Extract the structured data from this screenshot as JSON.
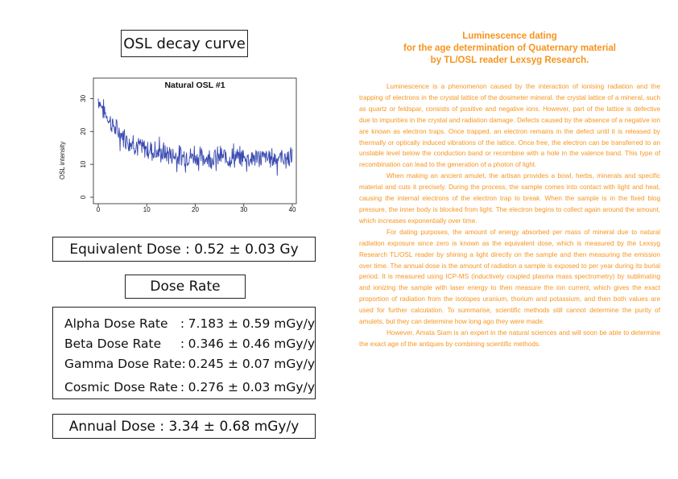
{
  "left": {
    "title": "OSL decay curve",
    "equivalent_dose": "Equivalent Dose : 0.52 ± 0.03 Gy",
    "dose_rate_heading": "Dose Rate",
    "dose_rates": [
      {
        "name": "Alpha Dose Rate",
        "sep": ":",
        "value": "7.183 ± 0.59 mGy/y"
      },
      {
        "name": "Beta Dose Rate",
        "sep": ":",
        "value": "0.346 ± 0.46 mGy/y"
      },
      {
        "name": "Gamma Dose Rate",
        "sep": ":",
        "value": "0.245 ± 0.07 mGy/y"
      },
      {
        "name": "Cosmic Dose Rate",
        "sep": ":",
        "value": "0.276 ± 0.03 mGy/y"
      }
    ],
    "annual_dose": "Annual Dose : 3.34 ± 0.68 mGy/y"
  },
  "chart_data": {
    "type": "line",
    "title": "Natural OSL #1",
    "xlabel": "",
    "ylabel": "OSL intensity",
    "xlim": [
      0,
      40
    ],
    "ylim": [
      0,
      35
    ],
    "x_ticks": [
      "0",
      "10",
      "20",
      "30",
      "40"
    ],
    "y_ticks": [
      "0",
      "10",
      "20",
      "30"
    ],
    "series_color": "#3a4bb0",
    "grid": false,
    "decay": {
      "x_start": 0,
      "x_end": 40,
      "start": 30,
      "plateau": 12,
      "half_life": 3.5
    }
  },
  "right": {
    "title_lines": [
      "Luminescence dating",
      "for the age determination of Quaternary material",
      "by TL/OSL reader Lexsyg Research."
    ],
    "paragraphs": [
      "Luminescence is a phenomenon caused by the interaction of ionising radiation and the trapping of electrons in the crystal lattice of the dosimeter mineral. the crystal lattice of a mineral, such as quartz or feldspar, consists of positive and negative ions. However, part of the lattice is defective due to impurities in the crystal and radiation damage. Defects caused by the absence of a negative ion are known as electron traps. Once trapped, an electron remains in the defect until it is released by thermally or optically induced vibrations of the lattice. Once free, the electron can be transferred to an unstable level below the conduction band or recombine with a hole in the valence band. This type of recombination can lead to the generation of a photon of light.",
      "When making an ancient amulet, the artisan provides a bowl, herbs, minerals and specific material and cuts it precisely. During the process, the sample comes into contact with light and heat, causing the internal electrons of the electron trap to break. When the sample is in the fixed blog pressure, the inner body is blocked from light. The electron begins to collect again around the amount, which increases exponentially over time.",
      "For dating purposes, the amount of energy absorbed per mass of mineral due to natural radiation exposure since zero is known as the equivalent dose, which is measured by the Lexsyg Research TL/OSL reader by shining a light directly on the sample and then measuring the emission over time. The annual dose is the amount of radiation a sample is exposed to per year during its burial period. It is measured using ICP-MS (inductively coupled plasma mass spectrometry) by sublimating and ionizing the sample with laser energy to then measure the ion current, which gives the exact proportion of radiation from the isotopes uranium, thorium and potassium, and then both values are used for further calculation. To summarise, scientific methods still cannot determine the purity of amulets, but they can determine how long ago they were made.",
      "However, Amata Siam is an expert in the natural sciences and will soon be able to determine the exact age of the antiques by combining scientific methods."
    ]
  }
}
